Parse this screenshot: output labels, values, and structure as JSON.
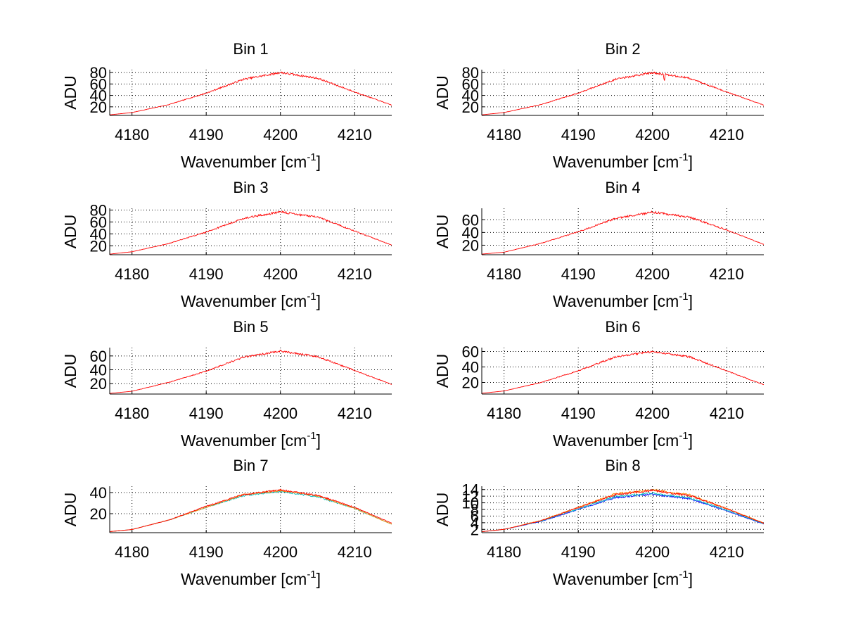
{
  "figure": {
    "background": "#ffffff"
  },
  "chart_data": [
    {
      "type": "line",
      "title": "Bin 1",
      "xlabel_base": "Wavenumber [cm",
      "xlabel_sup": "-1",
      "xlabel_end": "]",
      "ylabel": "ADU",
      "xlim": [
        4177,
        4215
      ],
      "ylim": [
        5,
        85
      ],
      "xticks": [
        4180,
        4190,
        4200,
        4210
      ],
      "yticks": [
        20,
        40,
        60,
        80
      ],
      "grid": true,
      "noise": 2.0,
      "series": [
        {
          "name": "s1",
          "color": "#ff0000",
          "x": [
            4177,
            4180,
            4185,
            4190,
            4195,
            4200,
            4205,
            4210,
            4215
          ],
          "y": [
            6,
            10,
            24,
            44,
            68,
            80,
            70,
            46,
            23
          ]
        }
      ]
    },
    {
      "type": "line",
      "title": "Bin 2",
      "xlabel_base": "Wavenumber [cm",
      "xlabel_sup": "-1",
      "xlabel_end": "]",
      "ylabel": "ADU",
      "xlim": [
        4177,
        4215
      ],
      "ylim": [
        5,
        85
      ],
      "xticks": [
        4180,
        4190,
        4200,
        4210
      ],
      "yticks": [
        20,
        40,
        60,
        80
      ],
      "grid": true,
      "noise": 2.0,
      "dip": {
        "x": 4201.6,
        "depth": 14
      },
      "series": [
        {
          "name": "s1",
          "color": "#ff0000",
          "x": [
            4177,
            4180,
            4185,
            4190,
            4195,
            4200,
            4205,
            4210,
            4215
          ],
          "y": [
            6,
            10,
            24,
            44,
            68,
            80,
            70,
            46,
            23
          ]
        }
      ]
    },
    {
      "type": "line",
      "title": "Bin 3",
      "xlabel_base": "Wavenumber [cm",
      "xlabel_sup": "-1",
      "xlabel_end": "]",
      "ylabel": "ADU",
      "xlim": [
        4177,
        4215
      ],
      "ylim": [
        5,
        83
      ],
      "xticks": [
        4180,
        4190,
        4200,
        4210
      ],
      "yticks": [
        20,
        40,
        60,
        80
      ],
      "grid": true,
      "noise": 2.0,
      "series": [
        {
          "name": "s1",
          "color": "#ff0000",
          "x": [
            4177,
            4180,
            4185,
            4190,
            4195,
            4200,
            4205,
            4210,
            4215
          ],
          "y": [
            6,
            10,
            24,
            43,
            66,
            77,
            68,
            45,
            21
          ]
        }
      ]
    },
    {
      "type": "line",
      "title": "Bin 4",
      "xlabel_base": "Wavenumber [cm",
      "xlabel_sup": "-1",
      "xlabel_end": "]",
      "ylabel": "ADU",
      "xlim": [
        4177,
        4215
      ],
      "ylim": [
        5,
        78
      ],
      "xticks": [
        4180,
        4190,
        4200,
        4210
      ],
      "yticks": [
        20,
        40,
        60
      ],
      "grid": true,
      "noise": 1.8,
      "series": [
        {
          "name": "s1",
          "color": "#ff0000",
          "x": [
            4177,
            4180,
            4185,
            4190,
            4195,
            4200,
            4205,
            4210,
            4215
          ],
          "y": [
            6,
            9,
            23,
            41,
            62,
            72,
            64,
            44,
            21
          ]
        }
      ]
    },
    {
      "type": "line",
      "title": "Bin 5",
      "xlabel_base": "Wavenumber [cm",
      "xlabel_sup": "-1",
      "xlabel_end": "]",
      "ylabel": "ADU",
      "xlim": [
        4177,
        4215
      ],
      "ylim": [
        5,
        72
      ],
      "xticks": [
        4180,
        4190,
        4200,
        4210
      ],
      "yticks": [
        20,
        40,
        60
      ],
      "grid": true,
      "noise": 1.6,
      "series": [
        {
          "name": "s1",
          "color": "#ff0000",
          "x": [
            4177,
            4180,
            4185,
            4190,
            4195,
            4200,
            4205,
            4210,
            4215
          ],
          "y": [
            6,
            9,
            22,
            38,
            58,
            67,
            59,
            39,
            19
          ]
        }
      ]
    },
    {
      "type": "line",
      "title": "Bin 6",
      "xlabel_base": "Wavenumber [cm",
      "xlabel_sup": "-1",
      "xlabel_end": "]",
      "ylabel": "ADU",
      "xlim": [
        4177,
        4215
      ],
      "ylim": [
        5,
        65
      ],
      "xticks": [
        4180,
        4190,
        4200,
        4210
      ],
      "yticks": [
        20,
        40,
        60
      ],
      "grid": true,
      "noise": 1.5,
      "series": [
        {
          "name": "s1",
          "color": "#ff0000",
          "x": [
            4177,
            4180,
            4185,
            4190,
            4195,
            4200,
            4205,
            4210,
            4215
          ],
          "y": [
            6,
            9,
            20,
            35,
            53,
            60,
            53,
            35,
            17
          ]
        }
      ]
    },
    {
      "type": "line",
      "title": "Bin 7",
      "xlabel_base": "Wavenumber [cm",
      "xlabel_sup": "-1",
      "xlabel_end": "]",
      "ylabel": "ADU",
      "xlim": [
        4177,
        4215
      ],
      "ylim": [
        2,
        46
      ],
      "xticks": [
        4180,
        4190,
        4200,
        4210
      ],
      "yticks": [
        20,
        40
      ],
      "grid": true,
      "noise": 0.9,
      "series": [
        {
          "name": "s1",
          "color": "#00bfbf",
          "x": [
            4177,
            4180,
            4185,
            4190,
            4195,
            4200,
            4205,
            4210,
            4215
          ],
          "y": [
            3,
            5,
            14,
            26,
            37,
            41,
            36,
            25,
            10
          ]
        },
        {
          "name": "s2",
          "color": "#ff8c00",
          "x": [
            4177,
            4180,
            4185,
            4190,
            4195,
            4200,
            4205,
            4210,
            4215
          ],
          "y": [
            3,
            5,
            14,
            26,
            38,
            42,
            37,
            25,
            10
          ]
        },
        {
          "name": "s3",
          "color": "#ff0000",
          "x": [
            4177,
            4180,
            4185,
            4190,
            4195,
            4200,
            4205,
            4210,
            4215
          ],
          "y": [
            3,
            5,
            14,
            27,
            38,
            42.5,
            37.5,
            26,
            11
          ]
        }
      ]
    },
    {
      "type": "line",
      "title": "Bin 8",
      "xlabel_base": "Wavenumber [cm",
      "xlabel_sup": "-1",
      "xlabel_end": "]",
      "ylabel": "ADU",
      "xlim": [
        4177,
        4215
      ],
      "ylim": [
        1,
        15
      ],
      "xticks": [
        4180,
        4190,
        4200,
        4210
      ],
      "yticks": [
        2,
        4,
        6,
        8,
        10,
        12,
        14
      ],
      "grid": true,
      "noise": 0.35,
      "series": [
        {
          "name": "s1",
          "color": "#0000ff",
          "x": [
            4177,
            4180,
            4185,
            4190,
            4195,
            4200,
            4205,
            4210,
            4215
          ],
          "y": [
            1.3,
            2.0,
            4.4,
            8.0,
            11.6,
            12.6,
            11.2,
            7.6,
            3.6
          ]
        },
        {
          "name": "s2",
          "color": "#00bfbf",
          "x": [
            4177,
            4180,
            4185,
            4190,
            4195,
            4200,
            4205,
            4210,
            4215
          ],
          "y": [
            1.3,
            2.0,
            4.5,
            8.2,
            11.9,
            12.9,
            11.5,
            7.8,
            3.7
          ]
        },
        {
          "name": "s3",
          "color": "#ff8c00",
          "x": [
            4177,
            4180,
            4185,
            4190,
            4195,
            4200,
            4205,
            4210,
            4215
          ],
          "y": [
            1.3,
            2.0,
            4.7,
            8.6,
            12.7,
            13.9,
            12.4,
            8.3,
            3.9
          ]
        },
        {
          "name": "s4",
          "color": "#ff0000",
          "x": [
            4177,
            4180,
            4185,
            4190,
            4195,
            4200,
            4205,
            4210,
            4215
          ],
          "y": [
            1.3,
            2.0,
            4.6,
            8.5,
            12.5,
            13.7,
            12.2,
            8.2,
            3.8
          ]
        }
      ]
    }
  ]
}
